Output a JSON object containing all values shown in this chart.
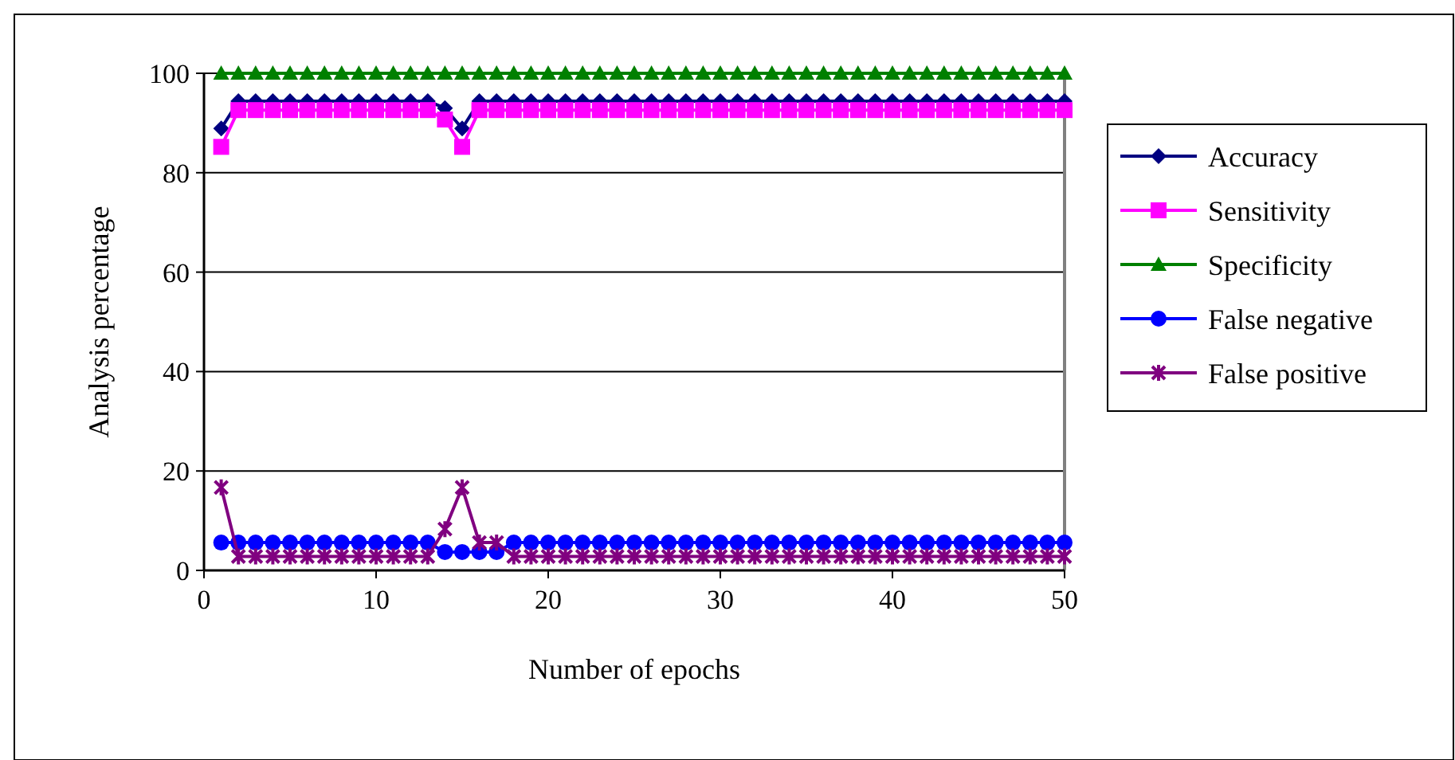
{
  "chart_data": {
    "type": "line",
    "xlabel": "Number of epochs",
    "ylabel": "Analysis percentage",
    "x": [
      1,
      2,
      3,
      4,
      5,
      6,
      7,
      8,
      9,
      10,
      11,
      12,
      13,
      14,
      15,
      16,
      17,
      18,
      19,
      20,
      21,
      22,
      23,
      24,
      25,
      26,
      27,
      28,
      29,
      30,
      31,
      32,
      33,
      34,
      35,
      36,
      37,
      38,
      39,
      40,
      41,
      42,
      43,
      44,
      45,
      46,
      47,
      48,
      49,
      50
    ],
    "xlim": [
      0,
      50
    ],
    "xticks": [
      0,
      10,
      20,
      30,
      40,
      50
    ],
    "ylim": [
      0,
      100
    ],
    "yticks": [
      0,
      20,
      40,
      60,
      80,
      100
    ],
    "grid": "y",
    "legend": "right",
    "series": [
      {
        "name": "Accuracy",
        "color": "#000080",
        "marker": "diamond",
        "values": [
          88.9,
          94.4,
          94.4,
          94.4,
          94.4,
          94.4,
          94.4,
          94.4,
          94.4,
          94.4,
          94.4,
          94.4,
          94.4,
          93,
          88.9,
          94.4,
          94.4,
          94.4,
          94.4,
          94.4,
          94.4,
          94.4,
          94.4,
          94.4,
          94.4,
          94.4,
          94.4,
          94.4,
          94.4,
          94.4,
          94.4,
          94.4,
          94.4,
          94.4,
          94.4,
          94.4,
          94.4,
          94.4,
          94.4,
          94.4,
          94.4,
          94.4,
          94.4,
          94.4,
          94.4,
          94.4,
          94.4,
          94.4,
          94.4,
          94.4
        ]
      },
      {
        "name": "Sensitivity",
        "color": "#ff00ff",
        "marker": "square",
        "values": [
          85.2,
          92.6,
          92.6,
          92.6,
          92.6,
          92.6,
          92.6,
          92.6,
          92.6,
          92.6,
          92.6,
          92.6,
          92.6,
          90.7,
          85.2,
          92.6,
          92.6,
          92.6,
          92.6,
          92.6,
          92.6,
          92.6,
          92.6,
          92.6,
          92.6,
          92.6,
          92.6,
          92.6,
          92.6,
          92.6,
          92.6,
          92.6,
          92.6,
          92.6,
          92.6,
          92.6,
          92.6,
          92.6,
          92.6,
          92.6,
          92.6,
          92.6,
          92.6,
          92.6,
          92.6,
          92.6,
          92.6,
          92.6,
          92.6,
          92.6
        ]
      },
      {
        "name": "Specificity",
        "color": "#008000",
        "marker": "triangle",
        "values": [
          100,
          100,
          100,
          100,
          100,
          100,
          100,
          100,
          100,
          100,
          100,
          100,
          100,
          100,
          100,
          100,
          100,
          100,
          100,
          100,
          100,
          100,
          100,
          100,
          100,
          100,
          100,
          100,
          100,
          100,
          100,
          100,
          100,
          100,
          100,
          100,
          100,
          100,
          100,
          100,
          100,
          100,
          100,
          100,
          100,
          100,
          100,
          100,
          100,
          100
        ]
      },
      {
        "name": "False negative",
        "color": "#0000ff",
        "marker": "circle",
        "values": [
          5.6,
          5.6,
          5.6,
          5.6,
          5.6,
          5.6,
          5.6,
          5.6,
          5.6,
          5.6,
          5.6,
          5.6,
          5.6,
          3.7,
          3.7,
          3.7,
          3.7,
          5.6,
          5.6,
          5.6,
          5.6,
          5.6,
          5.6,
          5.6,
          5.6,
          5.6,
          5.6,
          5.6,
          5.6,
          5.6,
          5.6,
          5.6,
          5.6,
          5.6,
          5.6,
          5.6,
          5.6,
          5.6,
          5.6,
          5.6,
          5.6,
          5.6,
          5.6,
          5.6,
          5.6,
          5.6,
          5.6,
          5.6,
          5.6,
          5.6
        ]
      },
      {
        "name": "False positive",
        "color": "#800080",
        "marker": "cross",
        "values": [
          16.7,
          2.8,
          2.8,
          2.8,
          2.8,
          2.8,
          2.8,
          2.8,
          2.8,
          2.8,
          2.8,
          2.8,
          2.8,
          8.3,
          16.7,
          5.6,
          5.6,
          2.8,
          2.8,
          2.8,
          2.8,
          2.8,
          2.8,
          2.8,
          2.8,
          2.8,
          2.8,
          2.8,
          2.8,
          2.8,
          2.8,
          2.8,
          2.8,
          2.8,
          2.8,
          2.8,
          2.8,
          2.8,
          2.8,
          2.8,
          2.8,
          2.8,
          2.8,
          2.8,
          2.8,
          2.8,
          2.8,
          2.8,
          2.8,
          2.8
        ]
      }
    ]
  }
}
